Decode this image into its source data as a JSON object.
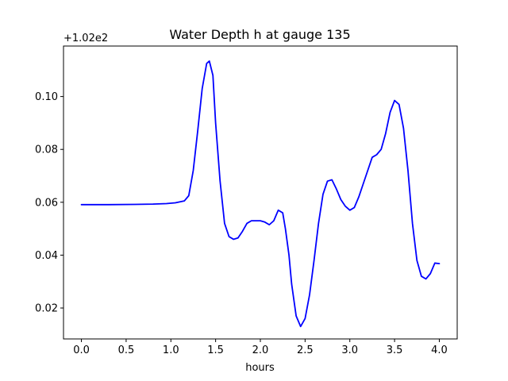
{
  "chart_data": {
    "type": "line",
    "title": "Water Depth h at gauge 135",
    "xlabel": "hours",
    "ylabel": "",
    "y_offset_label": "+1.02e2",
    "xlim": [
      -0.2,
      4.2
    ],
    "ylim": [
      0.0083,
      0.1191
    ],
    "x_ticks": [
      0.0,
      0.5,
      1.0,
      1.5,
      2.0,
      2.5,
      3.0,
      3.5,
      4.0
    ],
    "x_tick_labels": [
      "0.0",
      "0.5",
      "1.0",
      "1.5",
      "2.0",
      "2.5",
      "3.0",
      "3.5",
      "4.0"
    ],
    "y_ticks": [
      0.02,
      0.04,
      0.06,
      0.08,
      0.1
    ],
    "y_tick_labels": [
      "0.02",
      "0.04",
      "0.06",
      "0.08",
      "0.10"
    ],
    "grid": false,
    "series": [
      {
        "color": "#0000ff",
        "x": [
          0.0,
          0.3,
          0.6,
          0.8,
          0.95,
          1.05,
          1.15,
          1.2,
          1.25,
          1.3,
          1.35,
          1.4,
          1.43,
          1.47,
          1.5,
          1.55,
          1.6,
          1.65,
          1.7,
          1.75,
          1.8,
          1.85,
          1.9,
          1.95,
          2.0,
          2.05,
          2.1,
          2.15,
          2.2,
          2.25,
          2.28,
          2.32,
          2.35,
          2.4,
          2.45,
          2.5,
          2.55,
          2.6,
          2.65,
          2.7,
          2.75,
          2.8,
          2.85,
          2.9,
          2.95,
          3.0,
          3.05,
          3.1,
          3.15,
          3.2,
          3.25,
          3.3,
          3.35,
          3.4,
          3.45,
          3.5,
          3.55,
          3.6,
          3.65,
          3.7,
          3.75,
          3.8,
          3.85,
          3.9,
          3.95,
          4.0
        ],
        "y": [
          0.0591,
          0.0591,
          0.0592,
          0.0593,
          0.0595,
          0.0598,
          0.0605,
          0.0625,
          0.072,
          0.087,
          0.103,
          0.1125,
          0.1134,
          0.108,
          0.09,
          0.068,
          0.052,
          0.047,
          0.046,
          0.0465,
          0.049,
          0.052,
          0.053,
          0.053,
          0.053,
          0.0525,
          0.0515,
          0.053,
          0.057,
          0.056,
          0.05,
          0.04,
          0.029,
          0.017,
          0.013,
          0.016,
          0.025,
          0.038,
          0.052,
          0.063,
          0.068,
          0.0685,
          0.065,
          0.061,
          0.0585,
          0.057,
          0.058,
          0.062,
          0.067,
          0.072,
          0.077,
          0.078,
          0.08,
          0.086,
          0.094,
          0.0985,
          0.097,
          0.088,
          0.072,
          0.052,
          0.038,
          0.032,
          0.031,
          0.033,
          0.037,
          0.0368
        ]
      }
    ]
  }
}
